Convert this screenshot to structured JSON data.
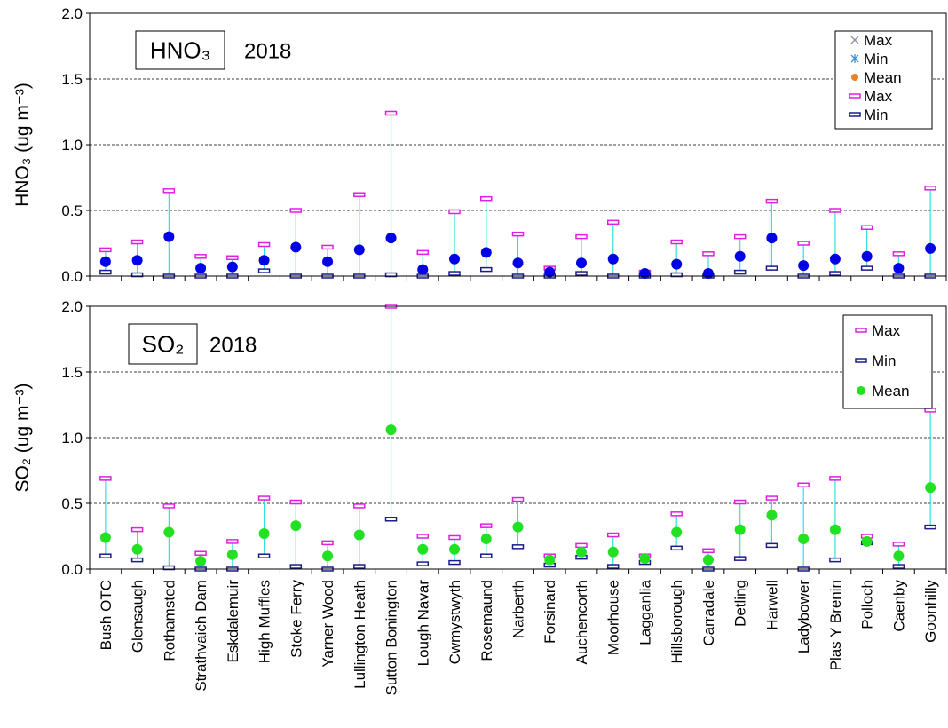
{
  "chart_data": [
    {
      "type": "range",
      "title": "HNO₃",
      "subtitle": "2018",
      "ylabel": "HNO₃ (ug m⁻³)",
      "ylim": [
        0,
        2
      ],
      "yticks": [
        {
          "value": 0,
          "label": "0.0"
        },
        {
          "value": 0.5,
          "label": "0.5"
        },
        {
          "value": 1,
          "label": "1.0"
        },
        {
          "value": 1.5,
          "label": "1.5"
        },
        {
          "value": 2,
          "label": "2.0"
        }
      ],
      "grid": true,
      "legend_markers": [
        {
          "name": "Max",
          "marker": "x",
          "color": "#8c8c9c"
        },
        {
          "name": "Min",
          "marker": "asterisk",
          "color": "#3a8fd0"
        },
        {
          "name": "Mean",
          "marker": "dot",
          "color": "#e8822c"
        }
      ],
      "series": [
        {
          "name": "Max",
          "color": "#e020e0",
          "values": [
            0.2,
            0.26,
            0.65,
            0.15,
            0.14,
            0.24,
            0.5,
            0.22,
            0.62,
            1.24,
            0.18,
            0.49,
            0.59,
            0.32,
            0.06,
            0.3,
            0.41,
            0.03,
            0.26,
            0.17,
            0.3,
            0.57,
            0.25,
            0.5,
            0.37,
            0.17,
            0.67
          ]
        },
        {
          "name": "Min",
          "color": "#1c1c8c",
          "values": [
            0.03,
            0.01,
            0,
            0,
            0,
            0.04,
            0,
            0,
            0,
            0.01,
            0,
            0.02,
            0.05,
            0,
            0,
            0.02,
            0,
            0,
            0.01,
            0,
            0.03,
            0.06,
            0,
            0.02,
            0.06,
            0,
            0
          ]
        },
        {
          "color": "#0000e6",
          "values": [
            0.11,
            0.12,
            0.3,
            0.06,
            0.07,
            0.12,
            0.22,
            0.11,
            0.2,
            0.29,
            0.05,
            0.13,
            0.18,
            0.1,
            0.03,
            0.1,
            0.13,
            0.02,
            0.09,
            0.02,
            0.15,
            0.29,
            0.08,
            0.13,
            0.15,
            0.06,
            0.21
          ]
        }
      ]
    },
    {
      "type": "range",
      "title": "SO₂",
      "subtitle": "2018",
      "ylabel": "SO₂ (ug m⁻³)",
      "ylim": [
        0,
        2
      ],
      "yticks": [
        {
          "value": 0,
          "label": "0.0"
        },
        {
          "value": 0.5,
          "label": "0.5"
        },
        {
          "value": 1,
          "label": "1.0"
        },
        {
          "value": 1.5,
          "label": "1.5"
        },
        {
          "value": 2,
          "label": "2.0"
        }
      ],
      "grid": true,
      "categories": [
        "Bush OTC",
        "Glensaugh",
        "Rothamsted",
        "Strathvaich Dam",
        "Eskdalemuir",
        "High Muffles",
        "Stoke Ferry",
        "Yarner Wood",
        "Lullington Heath",
        "Sutton Bonington",
        "Lough Navar",
        "Cwmystwyth",
        "Rosemaund",
        "Narberth",
        "Forsinard",
        "Auchencorth",
        "Moorhouse",
        "Lagganlia",
        "Hillsborough",
        "Carradale",
        "Detling",
        "Harwell",
        "Ladybower",
        "Plas Y Brenin",
        "Polloch",
        "Caenby",
        "Goonhilly"
      ],
      "series": [
        {
          "name": "Max",
          "color": "#e020e0",
          "values": [
            0.69,
            0.3,
            0.48,
            0.12,
            0.21,
            0.54,
            0.51,
            0.2,
            0.48,
            2.0,
            0.25,
            0.24,
            0.33,
            0.53,
            0.1,
            0.18,
            0.26,
            0.1,
            0.42,
            0.14,
            0.51,
            0.54,
            0.64,
            0.69,
            0.25,
            0.19,
            1.21
          ]
        },
        {
          "name": "Min",
          "color": "#1c1c8c",
          "values": [
            0.1,
            0.07,
            0.01,
            0,
            0,
            0.1,
            0.02,
            0,
            0.02,
            0.38,
            0.04,
            0.05,
            0.1,
            0.17,
            0.03,
            0.09,
            0.02,
            0.05,
            0.16,
            0,
            0.08,
            0.18,
            0,
            0.07,
            0.2,
            0.02,
            0.32
          ]
        },
        {
          "name": "Mean",
          "color": "#22e022",
          "values": [
            0.24,
            0.15,
            0.28,
            0.06,
            0.11,
            0.27,
            0.33,
            0.1,
            0.26,
            1.06,
            0.15,
            0.15,
            0.23,
            0.32,
            0.07,
            0.13,
            0.13,
            0.08,
            0.28,
            0.07,
            0.3,
            0.41,
            0.23,
            0.3,
            0.21,
            0.1,
            0.62
          ]
        }
      ]
    }
  ]
}
